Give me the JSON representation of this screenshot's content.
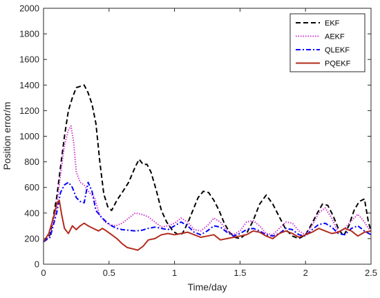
{
  "chart_data": {
    "type": "line",
    "title": "",
    "xlabel": "Time/day",
    "ylabel": "Position error/m",
    "xlim": [
      0,
      2.5
    ],
    "ylim": [
      0,
      2000
    ],
    "xticks": [
      0,
      0.5,
      1,
      1.5,
      2,
      2.5
    ],
    "xtick_labels": [
      "0",
      "0.5",
      "1",
      "1.5",
      "2",
      "2.5"
    ],
    "yticks": [
      0,
      200,
      400,
      600,
      800,
      1000,
      1200,
      1400,
      1600,
      1800,
      2000
    ],
    "ytick_labels": [
      "0",
      "200",
      "400",
      "600",
      "800",
      "1000",
      "1200",
      "1400",
      "1600",
      "1800",
      "2000"
    ],
    "grid": false,
    "legend_position": "top-right",
    "series": [
      {
        "name": "EKF",
        "color": "#000000",
        "dash": "dashed",
        "x": [
          0,
          0.05,
          0.1,
          0.13,
          0.16,
          0.19,
          0.22,
          0.25,
          0.28,
          0.31,
          0.34,
          0.37,
          0.4,
          0.43,
          0.46,
          0.49,
          0.52,
          0.56,
          0.6,
          0.65,
          0.7,
          0.73,
          0.76,
          0.79,
          0.82,
          0.86,
          0.9,
          0.94,
          0.98,
          1.0,
          1.03,
          1.06,
          1.1,
          1.14,
          1.18,
          1.22,
          1.26,
          1.3,
          1.34,
          1.38,
          1.42,
          1.46,
          1.5,
          1.55,
          1.6,
          1.65,
          1.7,
          1.75,
          1.8,
          1.85,
          1.9,
          1.95,
          2.0,
          2.05,
          2.09,
          2.13,
          2.17,
          2.21,
          2.25,
          2.29,
          2.33,
          2.37,
          2.41,
          2.45,
          2.48,
          2.5
        ],
        "y": [
          175,
          230,
          520,
          760,
          1000,
          1200,
          1300,
          1380,
          1390,
          1400,
          1340,
          1250,
          1100,
          800,
          550,
          450,
          420,
          500,
          560,
          640,
          760,
          820,
          780,
          780,
          720,
          580,
          420,
          330,
          270,
          250,
          230,
          240,
          320,
          420,
          520,
          570,
          560,
          500,
          420,
          320,
          250,
          210,
          200,
          240,
          340,
          470,
          540,
          470,
          370,
          270,
          220,
          200,
          230,
          320,
          400,
          470,
          460,
          380,
          280,
          220,
          300,
          420,
          490,
          510,
          330,
          260
        ]
      },
      {
        "name": "AEKF",
        "color": "#cc33cc",
        "dash": "dotted",
        "x": [
          0,
          0.05,
          0.1,
          0.13,
          0.16,
          0.19,
          0.21,
          0.23,
          0.25,
          0.28,
          0.31,
          0.35,
          0.39,
          0.43,
          0.47,
          0.5,
          0.55,
          0.6,
          0.65,
          0.7,
          0.75,
          0.8,
          0.85,
          0.9,
          0.95,
          1.0,
          1.05,
          1.1,
          1.15,
          1.2,
          1.25,
          1.3,
          1.35,
          1.4,
          1.45,
          1.5,
          1.55,
          1.6,
          1.65,
          1.7,
          1.75,
          1.8,
          1.85,
          1.9,
          1.95,
          2.0,
          2.05,
          2.1,
          2.15,
          2.2,
          2.25,
          2.3,
          2.35,
          2.4,
          2.45,
          2.5
        ],
        "y": [
          175,
          220,
          450,
          700,
          930,
          1050,
          1080,
          950,
          720,
          640,
          620,
          560,
          520,
          380,
          330,
          310,
          300,
          320,
          360,
          400,
          390,
          370,
          330,
          290,
          300,
          320,
          360,
          330,
          270,
          260,
          300,
          360,
          330,
          260,
          230,
          260,
          330,
          340,
          300,
          240,
          230,
          280,
          330,
          320,
          260,
          230,
          300,
          400,
          440,
          360,
          250,
          280,
          340,
          390,
          330,
          250
        ]
      },
      {
        "name": "QLEKF",
        "color": "#0000ff",
        "dash": "dashdot",
        "x": [
          0,
          0.05,
          0.1,
          0.13,
          0.16,
          0.19,
          0.22,
          0.25,
          0.28,
          0.31,
          0.34,
          0.37,
          0.4,
          0.44,
          0.48,
          0.52,
          0.56,
          0.6,
          0.65,
          0.7,
          0.75,
          0.8,
          0.85,
          0.9,
          0.95,
          1.0,
          1.05,
          1.1,
          1.15,
          1.2,
          1.25,
          1.3,
          1.35,
          1.4,
          1.45,
          1.5,
          1.55,
          1.6,
          1.65,
          1.7,
          1.75,
          1.8,
          1.85,
          1.9,
          1.95,
          2.0,
          2.05,
          2.1,
          2.15,
          2.2,
          2.25,
          2.3,
          2.35,
          2.4,
          2.45,
          2.5
        ],
        "y": [
          175,
          210,
          400,
          560,
          620,
          640,
          600,
          520,
          490,
          480,
          640,
          570,
          420,
          370,
          330,
          300,
          280,
          270,
          265,
          260,
          265,
          280,
          290,
          280,
          270,
          300,
          330,
          300,
          250,
          230,
          260,
          300,
          290,
          250,
          220,
          240,
          270,
          280,
          260,
          230,
          220,
          240,
          280,
          270,
          230,
          220,
          270,
          310,
          320,
          290,
          240,
          230,
          280,
          300,
          260,
          230
        ]
      },
      {
        "name": "PQEKF",
        "color": "#b22a1a",
        "dash": "solid",
        "x": [
          0,
          0.04,
          0.08,
          0.1,
          0.12,
          0.14,
          0.16,
          0.19,
          0.22,
          0.25,
          0.28,
          0.31,
          0.34,
          0.38,
          0.42,
          0.45,
          0.48,
          0.52,
          0.56,
          0.6,
          0.64,
          0.68,
          0.72,
          0.76,
          0.8,
          0.85,
          0.9,
          0.95,
          1.0,
          1.05,
          1.1,
          1.15,
          1.2,
          1.25,
          1.3,
          1.35,
          1.4,
          1.45,
          1.5,
          1.55,
          1.6,
          1.65,
          1.7,
          1.75,
          1.8,
          1.85,
          1.9,
          1.95,
          2.0,
          2.05,
          2.1,
          2.15,
          2.2,
          2.25,
          2.3,
          2.35,
          2.4,
          2.45,
          2.5
        ],
        "y": [
          175,
          240,
          380,
          470,
          500,
          380,
          280,
          240,
          300,
          270,
          300,
          320,
          300,
          280,
          260,
          280,
          260,
          230,
          200,
          160,
          130,
          120,
          110,
          140,
          190,
          200,
          230,
          240,
          230,
          240,
          250,
          230,
          210,
          220,
          230,
          190,
          200,
          210,
          220,
          230,
          260,
          250,
          220,
          200,
          240,
          260,
          240,
          210,
          230,
          250,
          280,
          260,
          240,
          250,
          280,
          260,
          220,
          250,
          260
        ]
      }
    ]
  }
}
